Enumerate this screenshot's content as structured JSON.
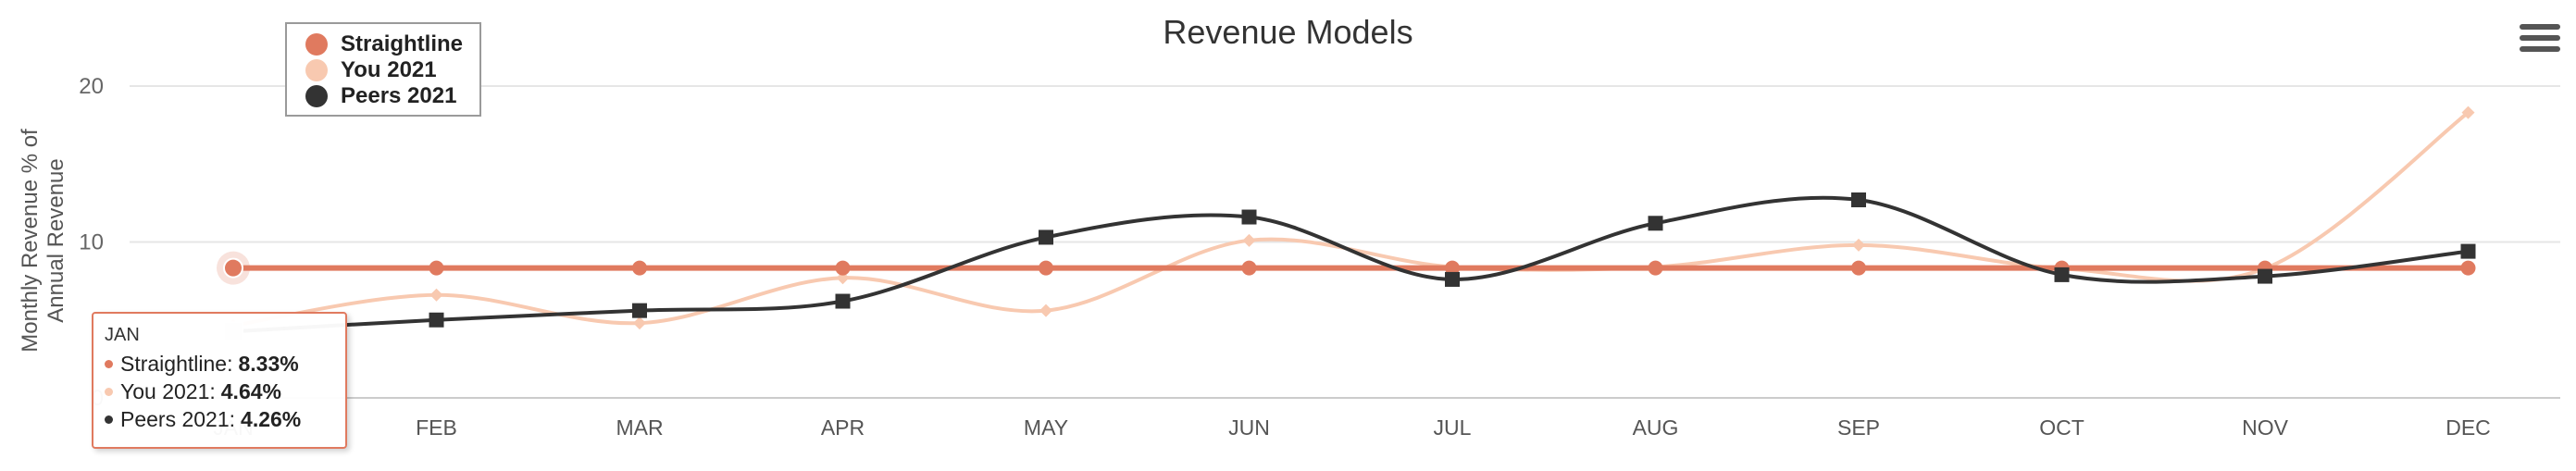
{
  "chart_data": {
    "type": "line",
    "title": "Revenue Models",
    "xlabel": "",
    "ylabel": "Monthly Revenue % of Annual Revenue",
    "ylabel_lines": [
      "Monthly Revenue % of",
      "Annual Revenue"
    ],
    "categories": [
      "JAN",
      "FEB",
      "MAR",
      "APR",
      "MAY",
      "JUN",
      "JUL",
      "AUG",
      "SEP",
      "OCT",
      "NOV",
      "DEC"
    ],
    "ylim": [
      0,
      20
    ],
    "yticks": [
      0,
      10,
      20
    ],
    "grid": true,
    "legend_placement": "top-left",
    "series": [
      {
        "name": "Straightline",
        "color": "#e07a5f",
        "marker": "circle",
        "smooth": false,
        "values": [
          8.33,
          8.33,
          8.33,
          8.33,
          8.33,
          8.33,
          8.33,
          8.33,
          8.33,
          8.33,
          8.33,
          8.33
        ]
      },
      {
        "name": "You 2021",
        "color": "#f8c9b0",
        "marker": "diamond",
        "smooth": true,
        "values": [
          4.64,
          6.6,
          4.8,
          7.7,
          5.6,
          10.1,
          8.4,
          8.4,
          9.8,
          8.3,
          8.3,
          18.3
        ]
      },
      {
        "name": "Peers 2021",
        "color": "#333333",
        "marker": "square",
        "smooth": true,
        "values": [
          4.26,
          5.0,
          5.6,
          6.2,
          10.3,
          11.6,
          7.6,
          11.2,
          12.7,
          7.9,
          7.8,
          9.4
        ]
      }
    ]
  },
  "tooltip": {
    "header": "JAN",
    "rows": [
      {
        "name": "Straightline",
        "value": "8.33%"
      },
      {
        "name": "You 2021",
        "value": "4.64%"
      },
      {
        "name": "Peers 2021",
        "value": "4.26%"
      }
    ]
  },
  "menu_icon": "hamburger-menu-icon"
}
